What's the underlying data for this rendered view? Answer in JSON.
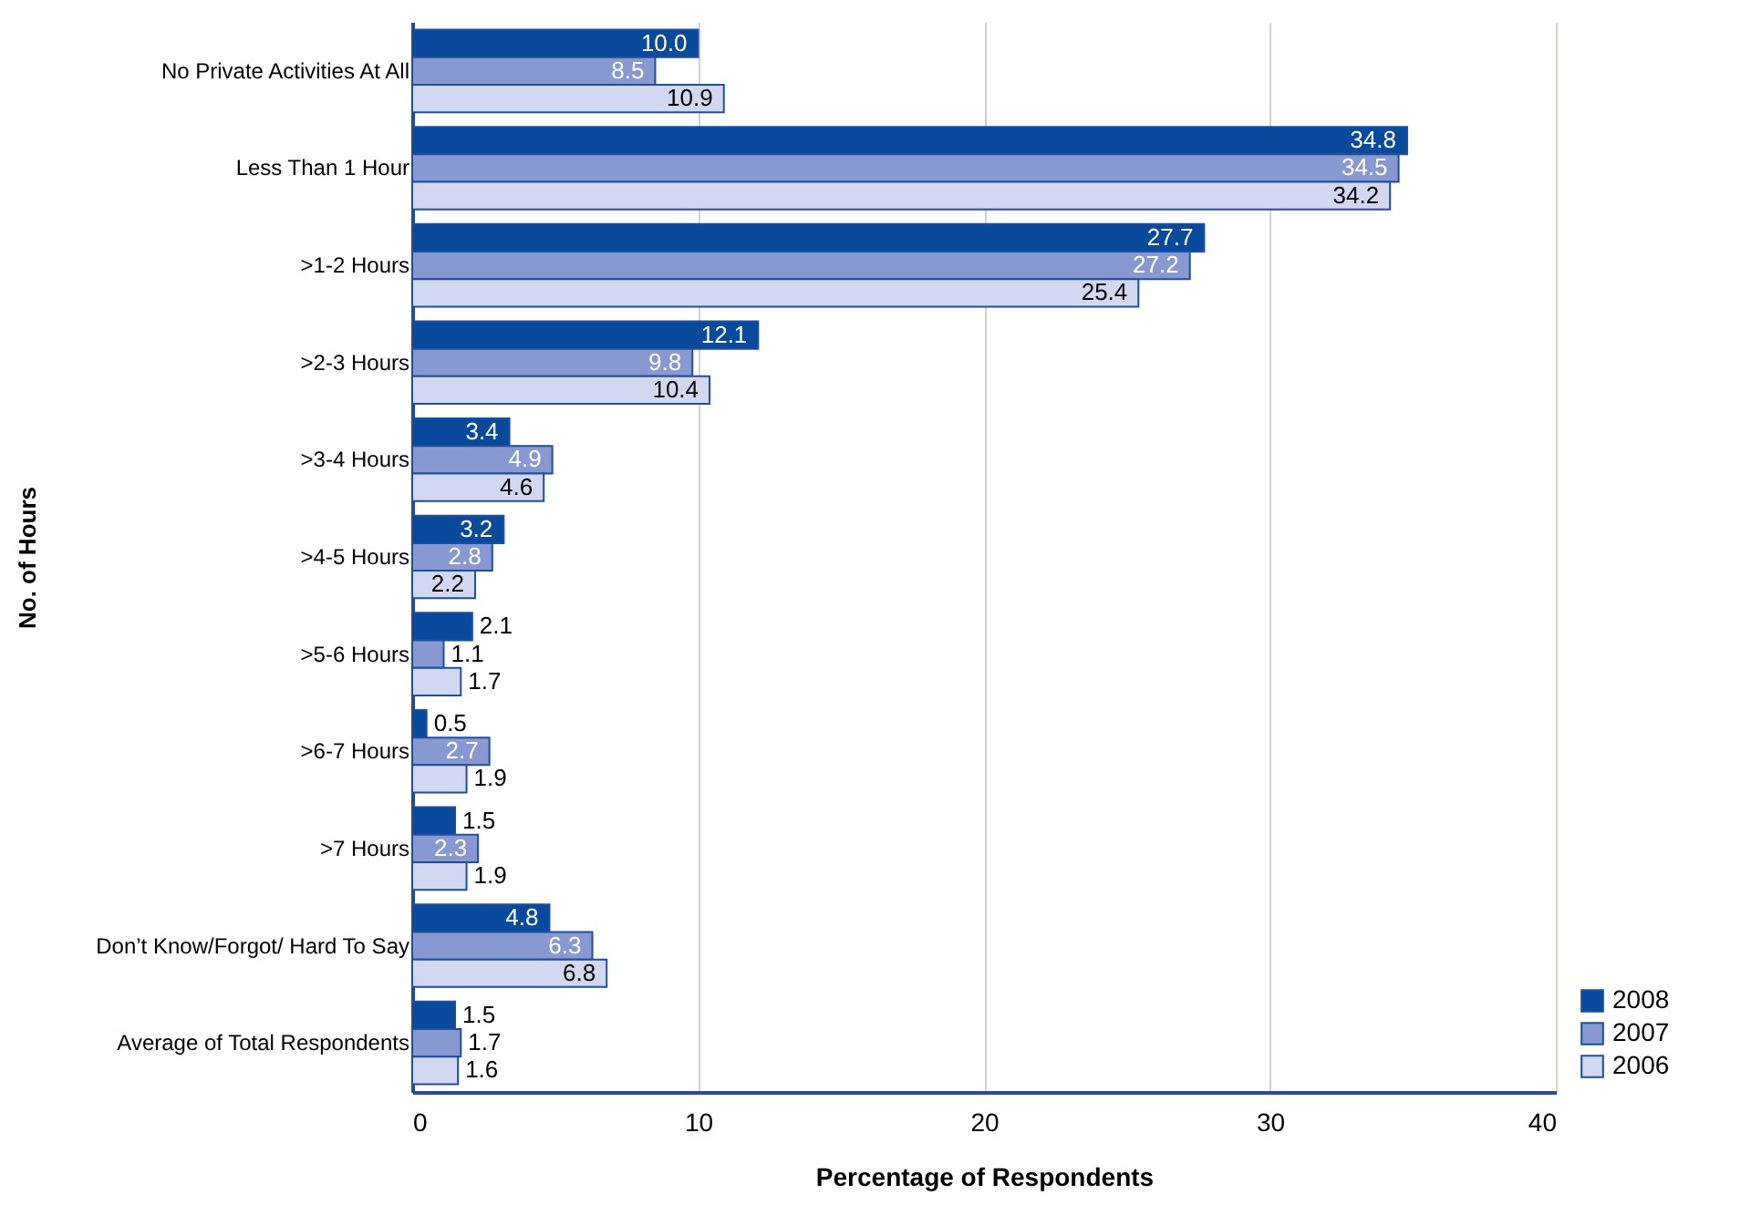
{
  "chart_data": {
    "type": "bar",
    "orientation": "horizontal",
    "xlabel": "Percentage of Respondents",
    "ylabel": "No. of Hours",
    "categories": [
      "No Private Activities At All",
      "Less Than 1 Hour",
      ">1-2 Hours",
      ">2-3 Hours",
      ">3-4 Hours",
      ">4-5 Hours",
      ">5-6 Hours",
      ">6-7 Hours",
      ">7 Hours",
      "Don’t Know/Forgot/ Hard To Say",
      "Average of Total Respondents"
    ],
    "series": [
      {
        "name": "2008",
        "color": "#0a4a9c",
        "values": [
          10.0,
          34.8,
          27.7,
          12.1,
          3.4,
          3.2,
          2.1,
          0.5,
          1.5,
          4.8,
          1.5
        ],
        "value_labels": [
          "10.0",
          "34.8",
          "27.7",
          "12.1",
          "3.4",
          "3.2",
          "2.1",
          "0.5",
          "1.5",
          "4.8",
          "1.5"
        ]
      },
      {
        "name": "2007",
        "color": "#8898d0",
        "values": [
          8.5,
          34.5,
          27.2,
          9.8,
          4.9,
          2.8,
          1.1,
          2.7,
          2.3,
          6.3,
          1.7
        ],
        "value_labels": [
          "8.5",
          "34.5",
          "27.2",
          "9.8",
          "4.9",
          "2.8",
          "1.1",
          "2.7",
          "2.3",
          "6.3",
          "1.7"
        ]
      },
      {
        "name": "2006",
        "color": "#d2d8f0",
        "values": [
          10.9,
          34.2,
          25.4,
          10.4,
          4.6,
          2.2,
          1.7,
          1.9,
          1.9,
          6.8,
          1.6
        ],
        "value_labels": [
          "10.9",
          "34.2",
          "25.4",
          "10.4",
          "4.6",
          "2.2",
          "1.7",
          "1.9",
          "1.9",
          "6.8",
          "1.6"
        ]
      }
    ],
    "xlim": [
      0,
      40
    ],
    "xticks": [
      0,
      10,
      20,
      30,
      40
    ],
    "grid": "x",
    "legend": "bottom right"
  }
}
